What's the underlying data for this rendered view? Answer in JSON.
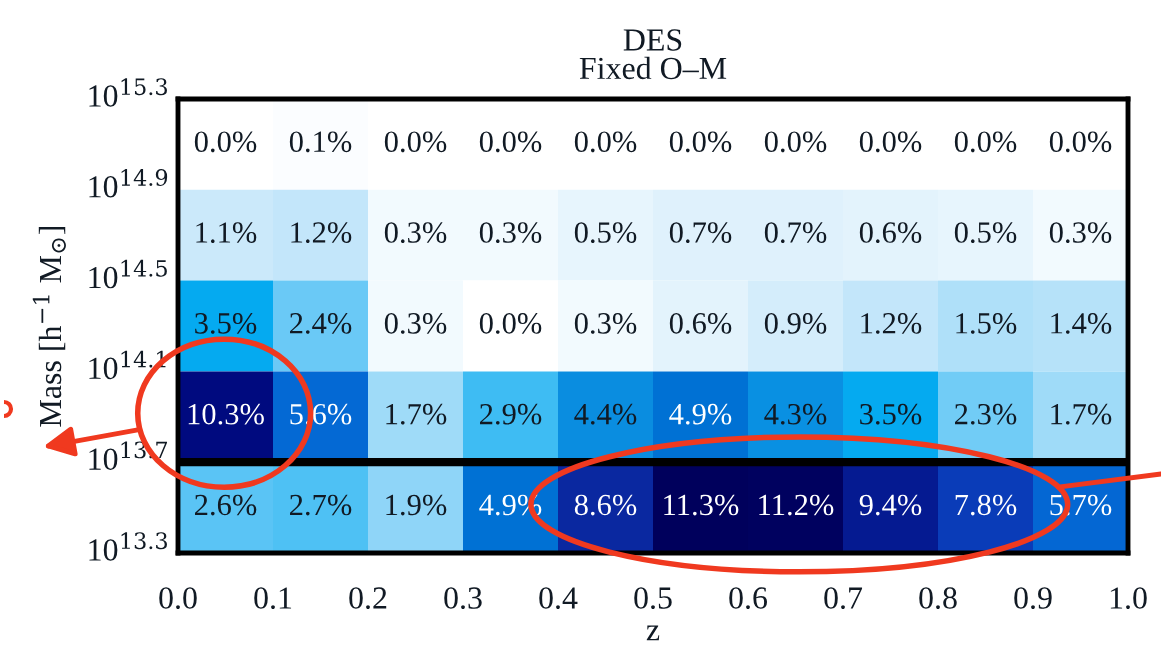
{
  "chart_data": {
    "type": "heatmap",
    "title": "DES",
    "subtitle": "Fixed O–M",
    "xlabel": "z",
    "ylabel": "Mass [h$^{−1}$ M$_{⊙}$]",
    "xlim": [
      0,
      1
    ],
    "xticks": [
      {
        "value": 0,
        "label": "0.0"
      },
      0.1,
      0.2,
      0.3,
      0.4,
      0.5,
      0.6,
      0.7,
      0.8,
      0.9,
      {
        "value": 1,
        "label": "1.0"
      }
    ],
    "tick_labels": "x",
    "y_categories": [
      null,
      null,
      null,
      null,
      null
    ],
    "cells": [
      [
        0.0,
        0.1,
        0.0,
        0.0,
        0.0,
        0.0,
        0.0,
        0.0,
        0.0,
        0.0
      ],
      [
        1.1,
        1.2,
        0.3,
        0.3,
        0.5,
        0.7,
        0.7,
        0.6,
        0.5,
        0.3
      ],
      [
        3.5,
        2.4,
        0.3,
        0.0,
        0.3,
        0.6,
        0.9,
        1.2,
        1.5,
        1.4
      ],
      [
        10.3,
        5.6,
        1.7,
        2.9,
        4.4,
        4.9,
        4.3,
        3.5,
        2.3,
        1.7
      ],
      [
        2.6,
        2.7,
        1.9,
        4.9,
        8.6,
        11.3,
        11.2,
        9.4,
        7.8,
        5.7
      ]
    ],
    "cell_labels": [
      [
        "0.0%",
        "0.1%",
        "0.0%",
        "0.0%",
        "0.0%",
        "0.0%",
        "0.0%",
        "0.0%",
        "0.0%",
        "0.0%"
      ],
      [
        "1.1%",
        "1.2%",
        "0.3%",
        "0.3%",
        "0.5%",
        "0.7%",
        "0.7%",
        "0.6%",
        "0.5%",
        "0.3%"
      ],
      [
        "3.5%",
        "2.4%",
        "0.3%",
        "0.0%",
        "0.3%",
        "0.6%",
        "0.9%",
        "1.2%",
        "1.5%",
        "1.4%"
      ],
      [
        "10.3%",
        "5.6%",
        "1.7%",
        "2.9%",
        "4.4%",
        "4.9%",
        "4.3%",
        "3.5%",
        "2.3%",
        "1.7%"
      ],
      [
        "2.6%",
        "2.7%",
        "1.9%",
        "4.9%",
        "8.6%",
        "11.3%",
        "11.2%",
        "9.4%",
        "7.8%",
        "5.7%"
      ]
    ],
    "annotations": [
      "10$^{15.3}$",
      "10$^{14.9}$",
      "10$^{14.5}$",
      "10$^{14.1}$",
      "10$^{13.7}$",
      "10$^{13.3}$"
    ]
  }
}
